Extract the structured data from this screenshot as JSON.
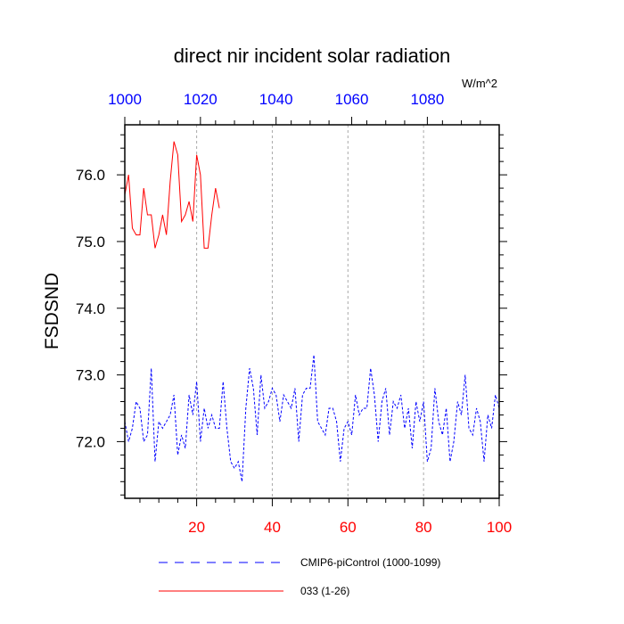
{
  "chart_data": {
    "type": "line",
    "title": "direct nir incident solar radiation",
    "ylabel": "FSDSND",
    "units_label": "W/m^2",
    "xlim": [
      1,
      100
    ],
    "ylim": [
      71.15,
      76.75
    ],
    "bottom_ticks": [
      "20",
      "40",
      "60",
      "80",
      "100"
    ],
    "bottom_tick_values": [
      20,
      40,
      60,
      80,
      100
    ],
    "top_ticks": [
      "1000",
      "1020",
      "1040",
      "1060",
      "1080"
    ],
    "top_tick_values": [
      1,
      21,
      41,
      61,
      81
    ],
    "y_ticks": [
      "72.0",
      "73.0",
      "74.0",
      "75.0",
      "76.0"
    ],
    "y_tick_values": [
      72,
      73,
      74,
      75,
      76
    ],
    "grid": "vertical dashed at major x ticks",
    "legend_position": "bottom",
    "colors": {
      "bottom_axis": "#ff0000",
      "top_axis": "#0000ff"
    },
    "series": [
      {
        "name": "CMIP6-piControl (1000-1099)",
        "color": "#0000ff",
        "dash": "dashed",
        "x": [
          1,
          2,
          3,
          4,
          5,
          6,
          7,
          8,
          9,
          10,
          11,
          12,
          13,
          14,
          15,
          16,
          17,
          18,
          19,
          20,
          21,
          22,
          23,
          24,
          25,
          26,
          27,
          28,
          29,
          30,
          31,
          32,
          33,
          34,
          35,
          36,
          37,
          38,
          39,
          40,
          41,
          42,
          43,
          44,
          45,
          46,
          47,
          48,
          49,
          50,
          51,
          52,
          53,
          54,
          55,
          56,
          57,
          58,
          59,
          60,
          61,
          62,
          63,
          64,
          65,
          66,
          67,
          68,
          69,
          70,
          71,
          72,
          73,
          74,
          75,
          76,
          77,
          78,
          79,
          80,
          81,
          82,
          83,
          84,
          85,
          86,
          87,
          88,
          89,
          90,
          91,
          92,
          93,
          94,
          95,
          96,
          97,
          98,
          99,
          100
        ],
        "values": [
          72.3,
          72.0,
          72.2,
          72.6,
          72.5,
          72.0,
          72.1,
          73.1,
          71.7,
          72.3,
          72.2,
          72.3,
          72.4,
          72.7,
          71.8,
          72.1,
          71.9,
          72.7,
          72.4,
          72.9,
          72.0,
          72.5,
          72.2,
          72.4,
          72.2,
          72.2,
          72.9,
          72.2,
          71.7,
          71.6,
          71.7,
          71.4,
          72.5,
          73.1,
          72.8,
          72.1,
          73.0,
          72.5,
          72.6,
          72.8,
          72.7,
          72.3,
          72.7,
          72.6,
          72.5,
          72.8,
          72.0,
          72.7,
          72.8,
          72.8,
          73.3,
          72.3,
          72.2,
          72.1,
          72.5,
          72.5,
          72.3,
          71.7,
          72.2,
          72.3,
          72.1,
          72.7,
          72.4,
          72.5,
          72.5,
          73.1,
          72.7,
          72.0,
          72.6,
          72.8,
          72.1,
          72.6,
          72.5,
          72.7,
          72.2,
          72.5,
          71.9,
          72.6,
          72.3,
          72.6,
          71.7,
          71.9,
          72.8,
          72.3,
          72.1,
          72.5,
          71.7,
          72.0,
          72.6,
          72.4,
          73.0,
          72.2,
          72.1,
          72.5,
          72.3,
          71.7,
          72.4,
          72.2,
          72.7,
          72.5
        ]
      },
      {
        "name": "033 (1-26)",
        "color": "#ff0000",
        "dash": "solid",
        "x": [
          1,
          2,
          3,
          4,
          5,
          6,
          7,
          8,
          9,
          10,
          11,
          12,
          13,
          14,
          15,
          16,
          17,
          18,
          19,
          20,
          21,
          22,
          23,
          24,
          25,
          26
        ],
        "values": [
          75.7,
          76.0,
          75.2,
          75.1,
          75.1,
          75.8,
          75.4,
          75.4,
          74.9,
          75.1,
          75.4,
          75.1,
          75.9,
          76.5,
          76.3,
          75.3,
          75.4,
          75.6,
          75.3,
          76.3,
          76.0,
          74.9,
          74.9,
          75.4,
          75.8,
          75.5
        ]
      }
    ]
  }
}
